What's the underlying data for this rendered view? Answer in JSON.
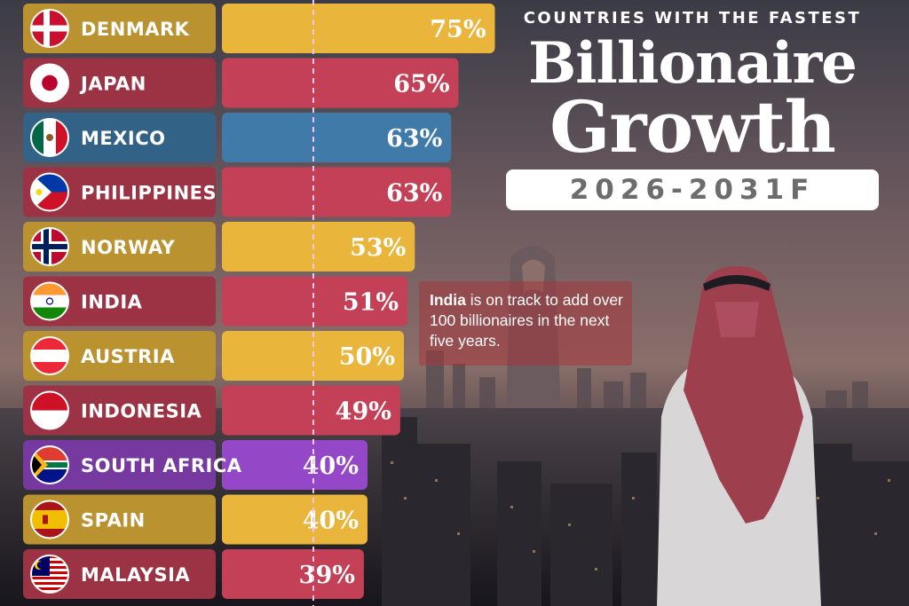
{
  "header": {
    "subtitle": "COUNTRIES WITH THE FASTEST",
    "title_line1": "Billionaire",
    "title_line2": "Growth",
    "period": "2026-2031F"
  },
  "callout": {
    "highlight": "India",
    "text": " is on track to add over 100 billionaires in the next five years."
  },
  "colors": {
    "gold": "#e9b63b",
    "red": "#c34056",
    "blue": "#3f7aa8",
    "purple": "#9447c7",
    "dotted_line": "#f3c4ee"
  },
  "chart_data": {
    "type": "bar",
    "orientation": "horizontal",
    "title": "Billionaire Growth",
    "subtitle": "COUNTRIES WITH THE FASTEST",
    "period": "2026-2031F",
    "unit": "%",
    "categories": [
      "DENMARK",
      "JAPAN",
      "MEXICO",
      "PHILIPPINES",
      "NORWAY",
      "INDIA",
      "AUSTRIA",
      "INDONESIA",
      "SOUTH AFRICA",
      "SPAIN",
      "MALAYSIA"
    ],
    "values": [
      75,
      65,
      63,
      63,
      53,
      51,
      50,
      49,
      40,
      40,
      39
    ],
    "bar_colors": [
      "gold",
      "red",
      "blue",
      "red",
      "gold",
      "red",
      "gold",
      "red",
      "purple",
      "gold",
      "red"
    ],
    "flag_icons": [
      "denmark-flag-icon",
      "japan-flag-icon",
      "mexico-flag-icon",
      "philippines-flag-icon",
      "norway-flag-icon",
      "india-flag-icon",
      "austria-flag-icon",
      "indonesia-flag-icon",
      "south-africa-flag-icon",
      "spain-flag-icon",
      "malaysia-flag-icon"
    ]
  }
}
